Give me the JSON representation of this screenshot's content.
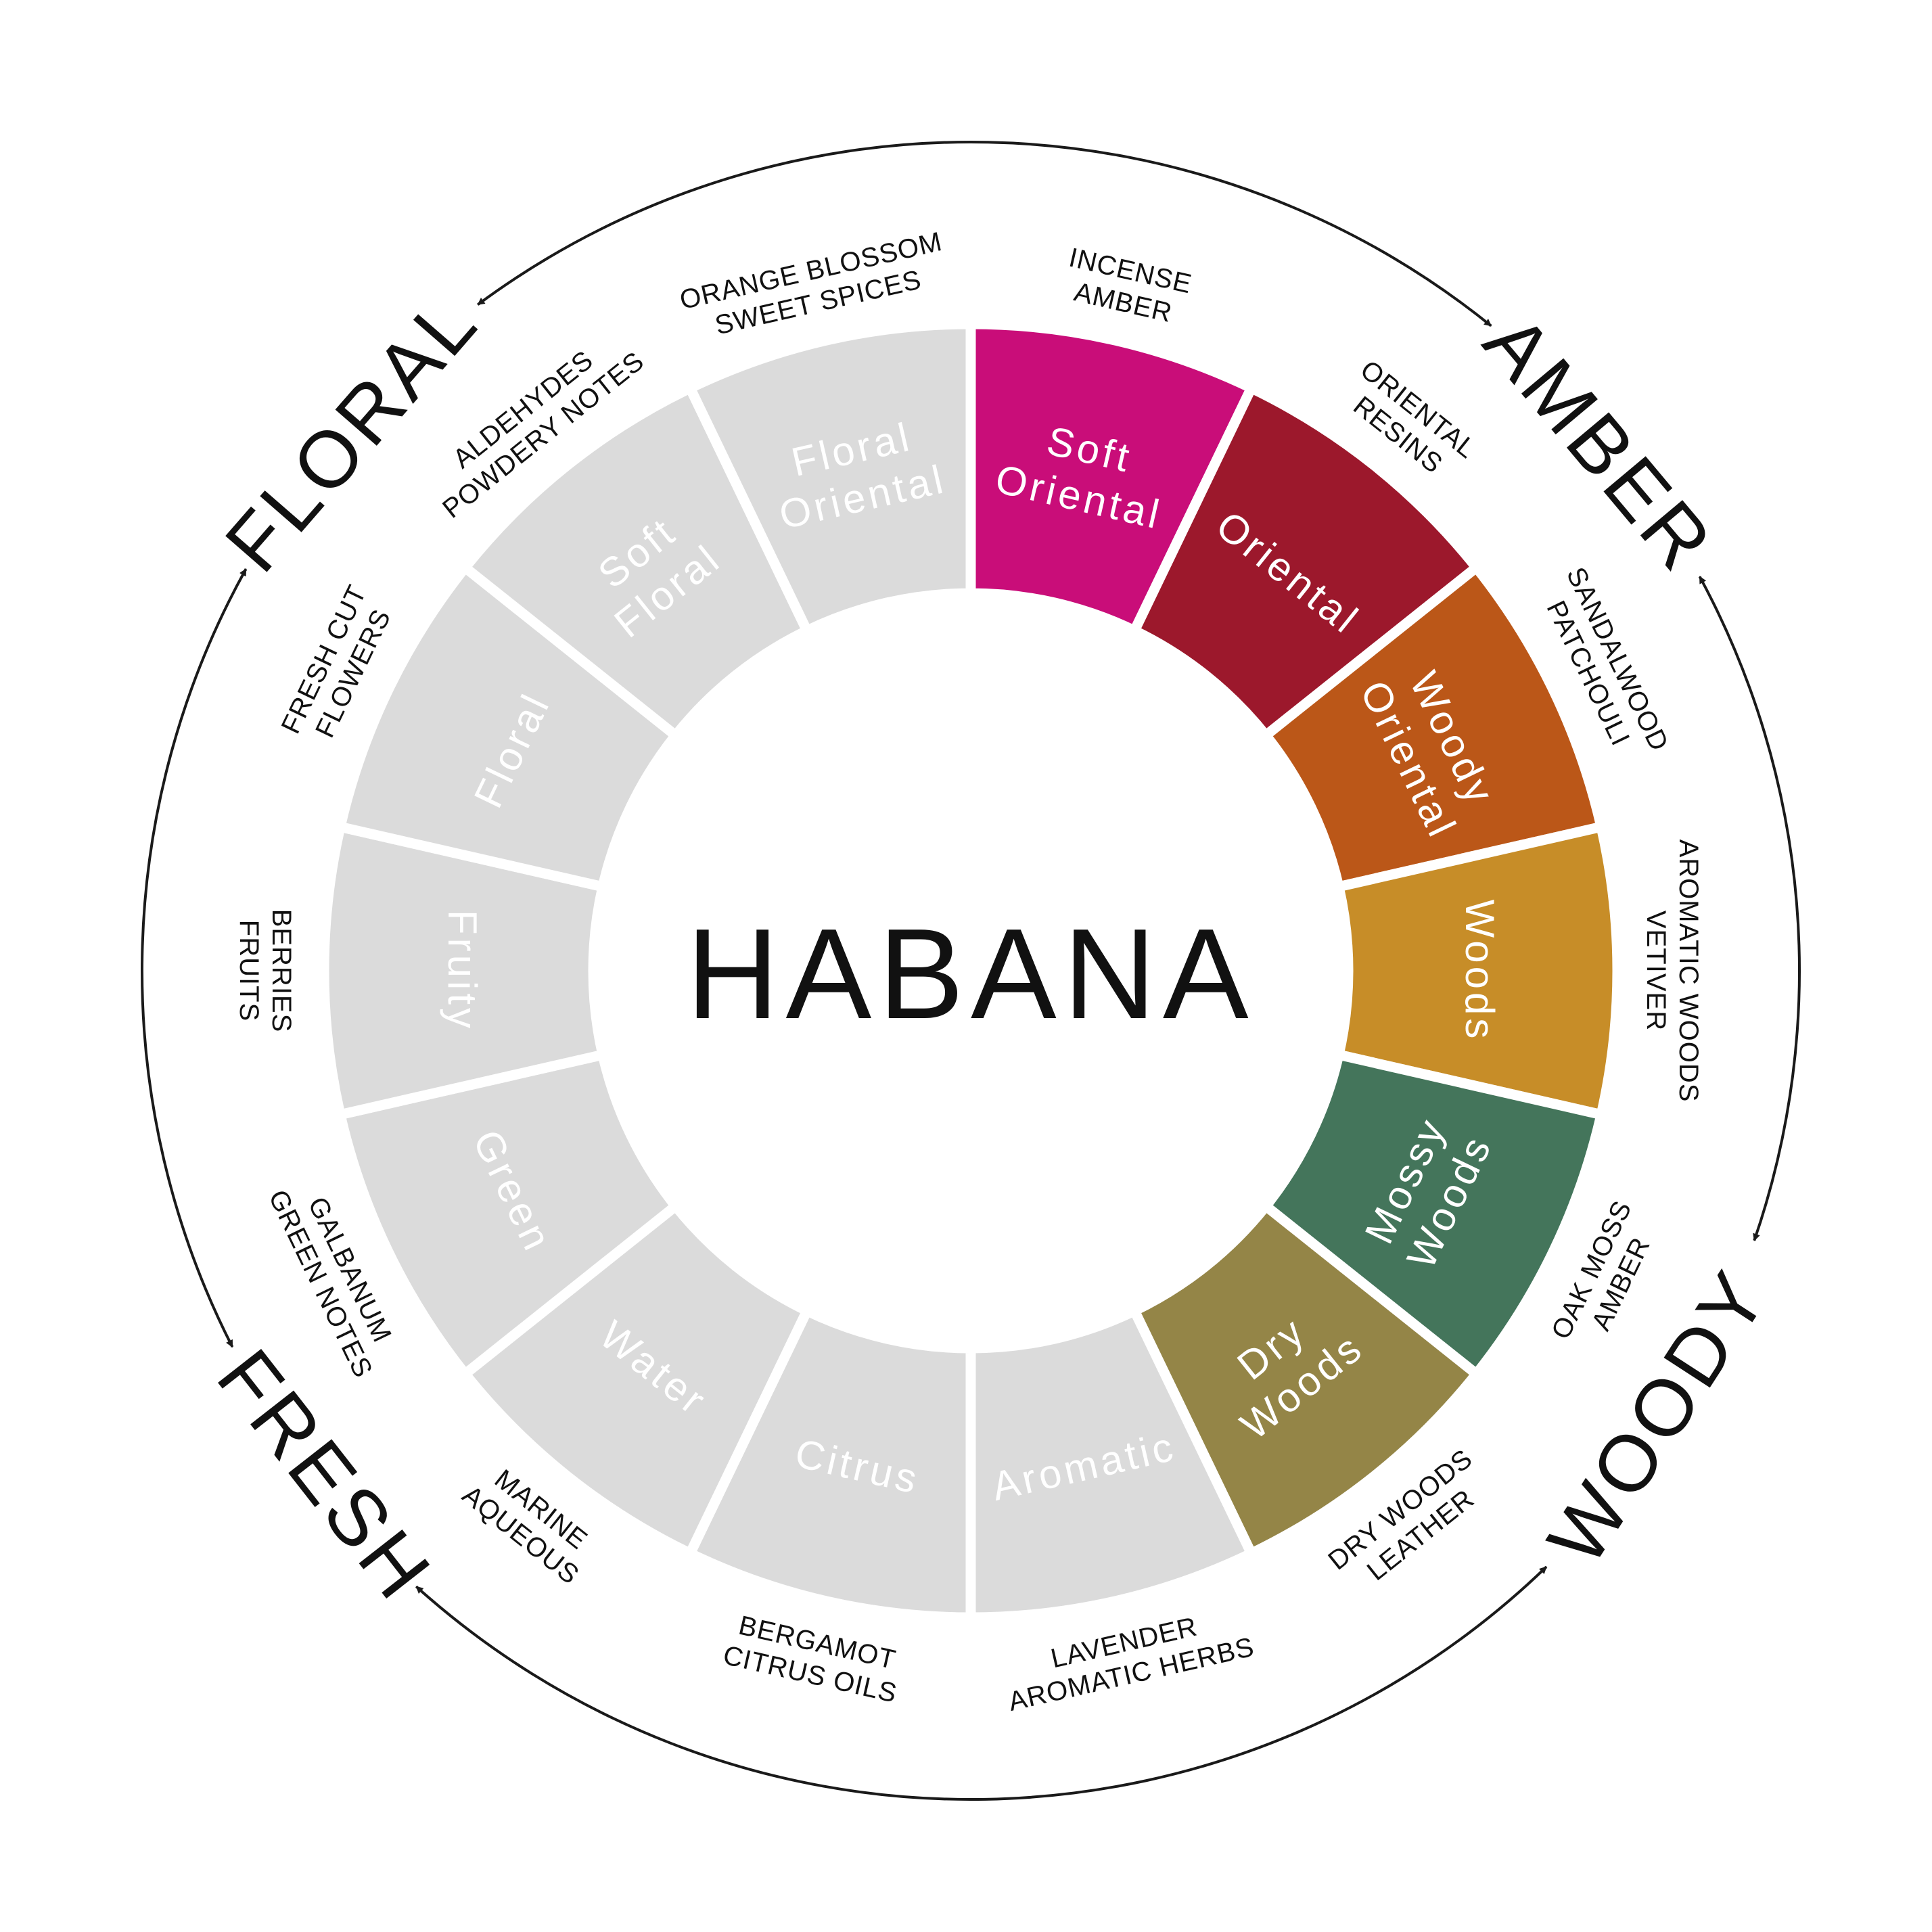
{
  "center_title": "HABANA",
  "segments": [
    {
      "label": "Soft\nOriental",
      "notes": [
        "INCENSE",
        "AMBER"
      ],
      "color": "#C90D79"
    },
    {
      "label": "Oriental",
      "notes": [
        "ORIENTAL",
        "RESINS"
      ],
      "color": "#9C182C"
    },
    {
      "label": "Woody\nOriental",
      "notes": [
        "SANDALWOOD",
        "PATCHOULI"
      ],
      "color": "#BB5718"
    },
    {
      "label": "Woods",
      "notes": [
        "AROMATIC WOODS",
        "VETIVER"
      ],
      "color": "#C78D28"
    },
    {
      "label": "Mossy\nWoods",
      "notes": [
        "OAK MOSS",
        "AMBER"
      ],
      "color": "#44755B"
    },
    {
      "label": "Dry\nWoods",
      "notes": [
        "DRY WOODS",
        "LEATHER"
      ],
      "color": "#948547"
    },
    {
      "label": "Aromatic",
      "notes": [
        "LAVENDER",
        "AROMATIC HERBS"
      ],
      "color": "#DBDBDB"
    },
    {
      "label": "Citrus",
      "notes": [
        "BERGAMOT",
        "CITRUS OILS"
      ],
      "color": "#DBDBDB"
    },
    {
      "label": "Water",
      "notes": [
        "MARINE",
        "AQUEOUS"
      ],
      "color": "#DBDBDB"
    },
    {
      "label": "Green",
      "notes": [
        "GALBANUM",
        "GREEN NOTES"
      ],
      "color": "#DBDBDB"
    },
    {
      "label": "Fruity",
      "notes": [
        "BERRIES",
        "FRUITS"
      ],
      "color": "#DBDBDB"
    },
    {
      "label": "Floral",
      "notes": [
        "FRESH CUT",
        "FLOWERS"
      ],
      "color": "#DBDBDB"
    },
    {
      "label": "Soft\nFloral",
      "notes": [
        "ALDEHYDES",
        "POWDERY NOTES"
      ],
      "color": "#DBDBDB"
    },
    {
      "label": "Floral\nOriental",
      "notes": [
        "ORANGE BLOSSOM",
        "SWEET SPICES"
      ],
      "color": "#DBDBDB"
    }
  ],
  "families": [
    {
      "label": "AMBER"
    },
    {
      "label": "WOODY"
    },
    {
      "label": "FRESH"
    },
    {
      "label": "FLORAL"
    }
  ]
}
